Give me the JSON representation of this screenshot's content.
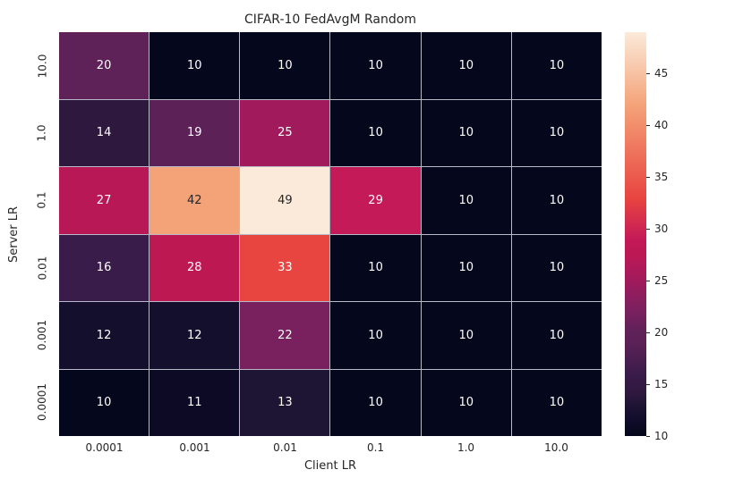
{
  "chart_data": {
    "type": "heatmap",
    "title": "CIFAR-10 FedAvgM Random",
    "xlabel": "Client LR",
    "ylabel": "Server LR",
    "x_categories": [
      "0.0001",
      "0.001",
      "0.01",
      "0.1",
      "1.0",
      "10.0"
    ],
    "y_categories": [
      "10.0",
      "1.0",
      "0.1",
      "0.01",
      "0.001",
      "0.0001"
    ],
    "values": [
      [
        20,
        10,
        10,
        10,
        10,
        10
      ],
      [
        14,
        19,
        25,
        10,
        10,
        10
      ],
      [
        27,
        42,
        49,
        29,
        10,
        10
      ],
      [
        16,
        28,
        33,
        10,
        10,
        10
      ],
      [
        12,
        12,
        22,
        10,
        10,
        10
      ],
      [
        10,
        11,
        13,
        10,
        10,
        10
      ]
    ],
    "colormap": "rocket",
    "vmin": 10,
    "vmax": 49,
    "colorbar_ticks": [
      10,
      15,
      20,
      25,
      30,
      35,
      40,
      45
    ],
    "colorbar_position": "right",
    "grid_on": true,
    "cell_colors": {
      "10": "#05071c",
      "11": "#0c0a24",
      "12": "#150f2e",
      "13": "#1e1434",
      "14": "#2e183d",
      "16": "#3a1c4a",
      "19": "#5c2157",
      "20": "#5e2158",
      "22": "#79215f",
      "25": "#a01a5c",
      "27": "#b81956",
      "28": "#be1853",
      "29": "#c41a58",
      "33": "#e84540",
      "42": "#f4a379",
      "49": "#fbeada"
    },
    "dark_text_values": [
      42,
      49
    ],
    "colors": {
      "tick_text": "#262626",
      "gridline": "#b7b9c6",
      "cell_text_light": "#ffffff",
      "cell_text_dark": "#262626",
      "background": "#ffffff"
    }
  }
}
